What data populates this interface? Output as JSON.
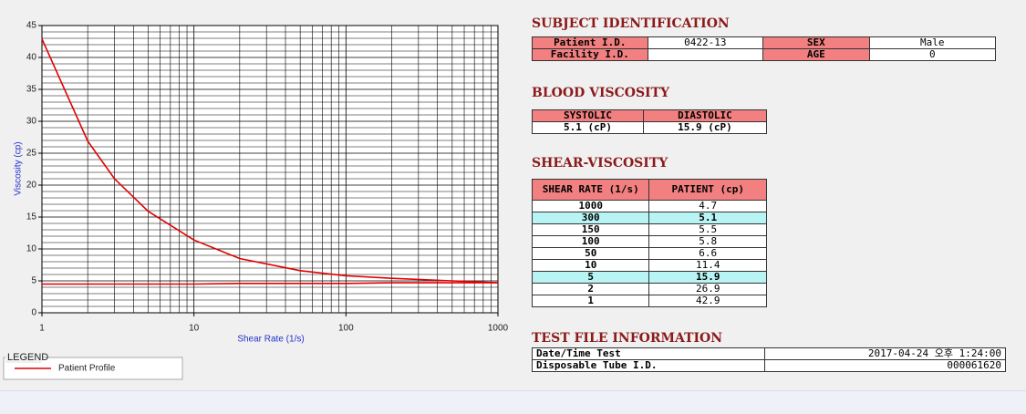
{
  "chart_data": {
    "type": "line",
    "x_label": "Shear Rate (1/s)",
    "y_label": "Viscosity (cp)",
    "x": [
      1,
      2,
      3,
      5,
      10,
      20,
      50,
      100,
      200,
      500,
      1000
    ],
    "series": [
      {
        "name": "Patient Profile",
        "color": "#e00000",
        "values": [
          42.9,
          26.9,
          21.0,
          15.9,
          11.4,
          8.5,
          6.6,
          5.8,
          5.4,
          5.0,
          4.7
        ]
      },
      {
        "color": "#e00000",
        "values": [
          4.5,
          4.5,
          4.5,
          4.5,
          4.5,
          4.6,
          4.6,
          4.6,
          4.7,
          4.7,
          4.7
        ]
      }
    ],
    "xlim": [
      1,
      1000
    ],
    "xticks": [
      1,
      10,
      100,
      1000
    ],
    "log_x": true,
    "ylim": [
      0,
      45
    ],
    "yticks": [
      0,
      5,
      10,
      15,
      20,
      25,
      30,
      35,
      40,
      45
    ],
    "grid": true,
    "legend_title": "LEGEND"
  },
  "subject": {
    "title": "SUBJECT IDENTIFICATION",
    "rows": [
      [
        "Patient I.D.",
        "0422-13",
        "SEX",
        "Male"
      ],
      [
        "Facility I.D.",
        null,
        "AGE",
        "0"
      ]
    ]
  },
  "blood": {
    "title": "BLOOD VISCOSITY",
    "headers": [
      "SYSTOLIC",
      "DIASTOLIC"
    ],
    "values": [
      "5.1 (cP)",
      "15.9 (cP)"
    ]
  },
  "shear": {
    "title": "SHEAR-VISCOSITY",
    "headers": [
      "SHEAR RATE (1/s)",
      "PATIENT (cp)"
    ],
    "rows": [
      [
        "1000",
        "4.7"
      ],
      [
        "300",
        "5.1"
      ],
      [
        "150",
        "5.5"
      ],
      [
        "100",
        "5.8"
      ],
      [
        "50",
        "6.6"
      ],
      [
        "10",
        "11.4"
      ],
      [
        "5",
        "15.9"
      ],
      [
        "2",
        "26.9"
      ],
      [
        "1",
        "42.9"
      ]
    ],
    "highlight_rows": [
      1,
      6
    ]
  },
  "test_file": {
    "title": "TEST FILE INFORMATION",
    "rows": [
      [
        "Date/Time Test",
        "2017-04-24  오후 1:24:00"
      ],
      [
        "Disposable Tube I.D.",
        "000061620"
      ]
    ]
  }
}
